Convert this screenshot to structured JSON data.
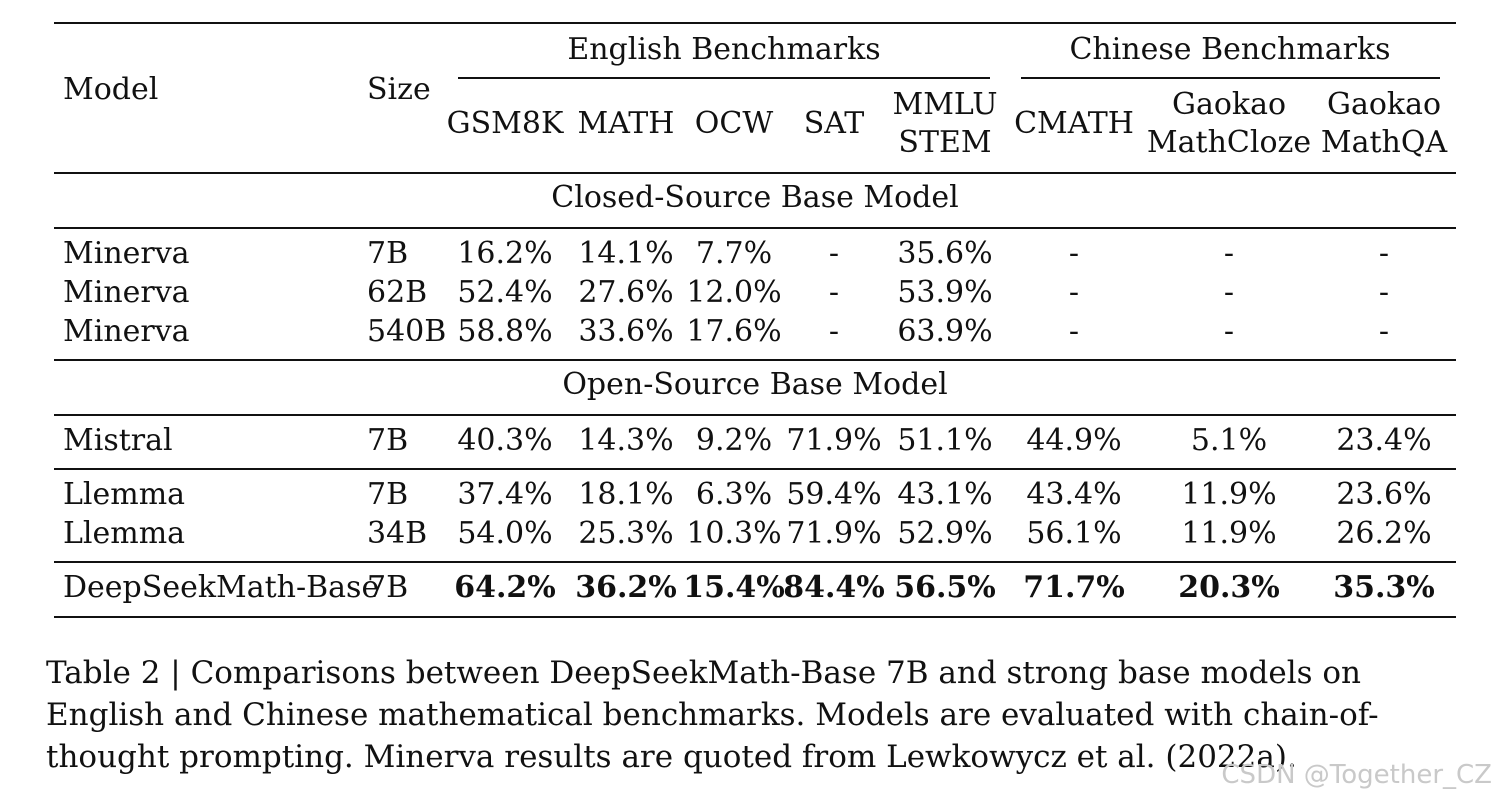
{
  "table": {
    "header": {
      "model": "Model",
      "size": "Size",
      "group_english": "English Benchmarks",
      "group_chinese": "Chinese Benchmarks",
      "cols": [
        [
          "GSM8K",
          ""
        ],
        [
          "MATH",
          ""
        ],
        [
          "OCW",
          ""
        ],
        [
          "SAT",
          ""
        ],
        [
          "MMLU",
          "STEM"
        ],
        [
          "CMATH",
          ""
        ],
        [
          "Gaokao",
          "MathCloze"
        ],
        [
          "Gaokao",
          "MathQA"
        ]
      ]
    },
    "sections": [
      {
        "title": "Closed-Source Base Model",
        "groups": [
          [
            {
              "model": "Minerva",
              "size": "7B",
              "values": [
                "16.2%",
                "14.1%",
                "7.7%",
                "-",
                "35.6%",
                "-",
                "-",
                "-"
              ],
              "bold": false
            },
            {
              "model": "Minerva",
              "size": "62B",
              "values": [
                "52.4%",
                "27.6%",
                "12.0%",
                "-",
                "53.9%",
                "-",
                "-",
                "-"
              ],
              "bold": false
            },
            {
              "model": "Minerva",
              "size": "540B",
              "values": [
                "58.8%",
                "33.6%",
                "17.6%",
                "-",
                "63.9%",
                "-",
                "-",
                "-"
              ],
              "bold": false
            }
          ]
        ]
      },
      {
        "title": "Open-Source Base Model",
        "groups": [
          [
            {
              "model": "Mistral",
              "size": "7B",
              "values": [
                "40.3%",
                "14.3%",
                "9.2%",
                "71.9%",
                "51.1%",
                "44.9%",
                "5.1%",
                "23.4%"
              ],
              "bold": false
            }
          ],
          [
            {
              "model": "Llemma",
              "size": "7B",
              "values": [
                "37.4%",
                "18.1%",
                "6.3%",
                "59.4%",
                "43.1%",
                "43.4%",
                "11.9%",
                "23.6%"
              ],
              "bold": false
            },
            {
              "model": "Llemma",
              "size": "34B",
              "values": [
                "54.0%",
                "25.3%",
                "10.3%",
                "71.9%",
                "52.9%",
                "56.1%",
                "11.9%",
                "26.2%"
              ],
              "bold": false
            }
          ],
          [
            {
              "model": "DeepSeekMath-Base",
              "size": "7B",
              "values": [
                "64.2%",
                "36.2%",
                "15.4%",
                "84.4%",
                "56.5%",
                "71.7%",
                "20.3%",
                "35.3%"
              ],
              "bold": true
            }
          ]
        ]
      }
    ]
  },
  "caption": "Table 2 | Comparisons between DeepSeekMath-Base 7B and strong base models on English and Chinese mathematical benchmarks. Models are evaluated with chain-of-thought prompting. Minerva results are quoted from Lewkowycz et al. (2022a).",
  "watermark": "CSDN @Together_CZ"
}
